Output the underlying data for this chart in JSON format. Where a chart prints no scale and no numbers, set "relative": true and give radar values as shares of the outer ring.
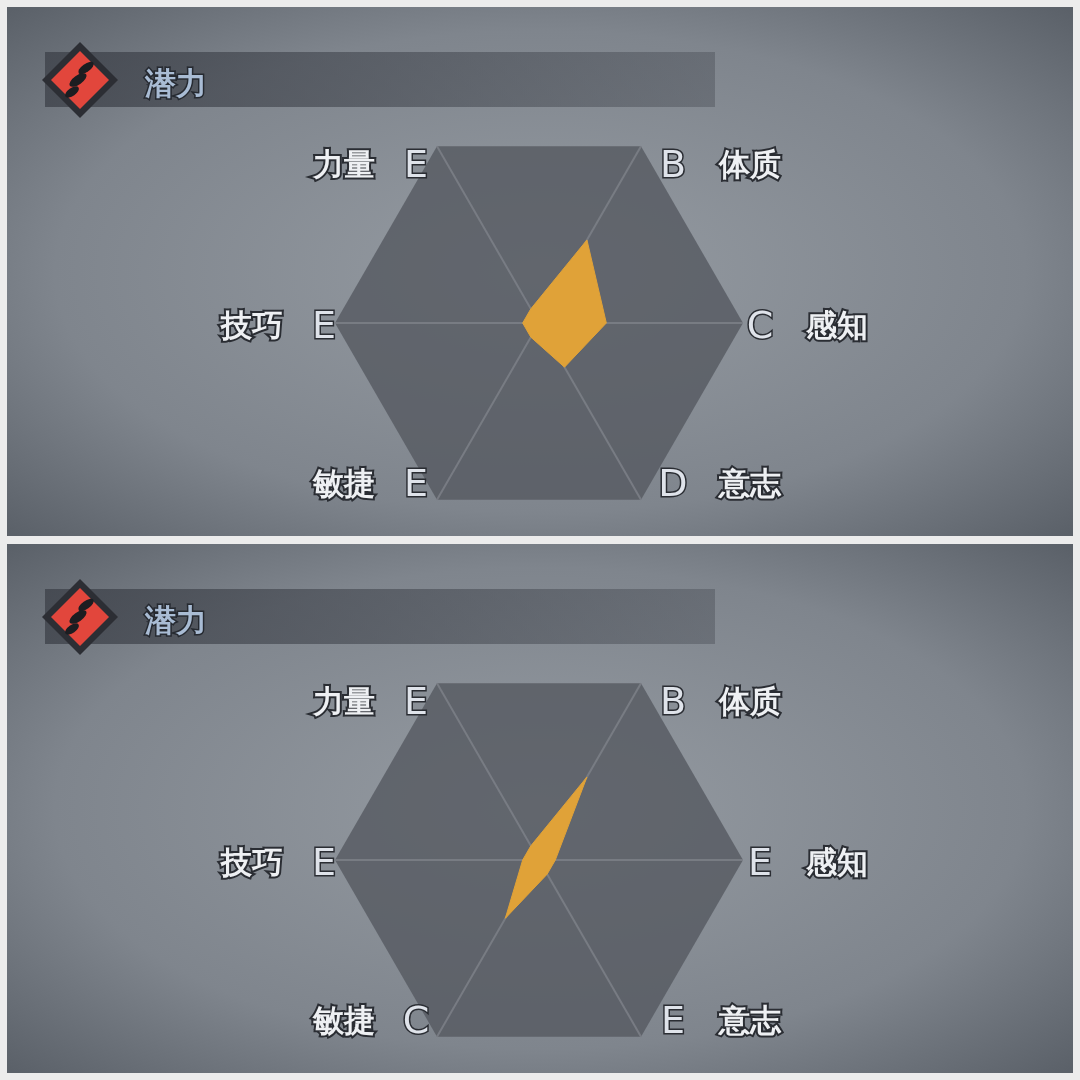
{
  "chart_data": [
    {
      "type": "radar",
      "title": "潜力",
      "categories": [
        "B 体质",
        "C 感知",
        "D 意志",
        "敏捷 E",
        "技巧 E",
        "力量 E"
      ],
      "relative": true,
      "series": [
        {
          "color": "#e0a238",
          "values": [
            0.47,
            0.33,
            0.25,
            0.08,
            0.08,
            0.08
          ]
        }
      ]
    },
    {
      "type": "radar",
      "title": "潜力",
      "categories": [
        "B 体质",
        "E 感知",
        "E 意志",
        "敏捷 C",
        "技巧 E",
        "力量 E"
      ],
      "relative": true,
      "series": [
        {
          "color": "#e0a238",
          "values": [
            0.47,
            0.08,
            0.08,
            0.33,
            0.08,
            0.08
          ]
        }
      ]
    }
  ]
}
